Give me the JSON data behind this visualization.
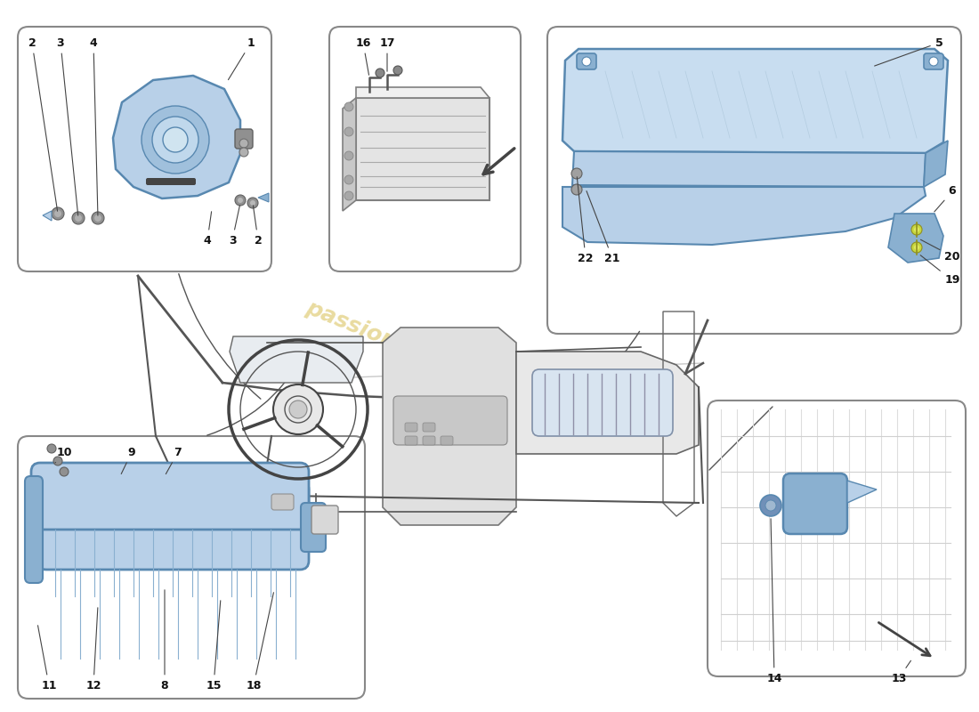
{
  "bg": "#ffffff",
  "blue_light": "#b8d0e8",
  "blue_mid": "#8ab0d0",
  "blue_dark": "#5888b0",
  "gray_line": "#555555",
  "gray_light": "#d0d0d0",
  "box_edge": "#888888",
  "label_fs": 9,
  "wm_color": "#d4b840",
  "wm_alpha": 0.5,
  "fig_w": 11.0,
  "fig_h": 8.0,
  "xlim": [
    0,
    1100
  ],
  "ylim": [
    0,
    800
  ]
}
